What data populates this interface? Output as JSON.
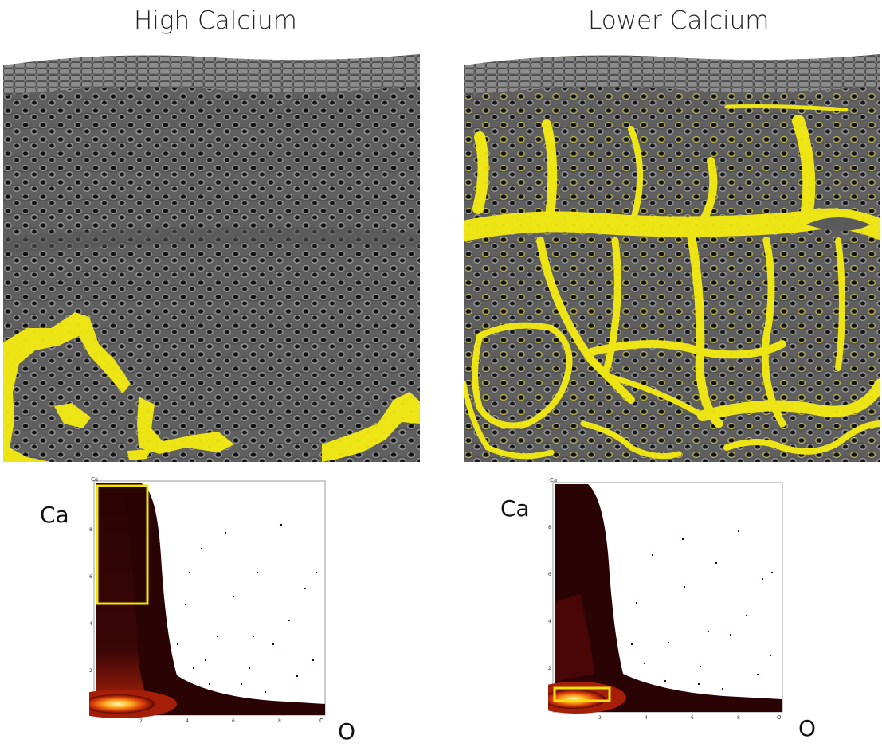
{
  "panels": [
    {
      "title": "High Calcium",
      "ylabel": "Ca",
      "xlabel": "O",
      "mini_y": "Ca",
      "mini_x": "O",
      "y_ticks": [
        "2",
        "4",
        "6",
        "8"
      ],
      "x_ticks": [
        "2",
        "4",
        "6",
        "8"
      ],
      "selection": "high-Ca region (Ca ≈ 5–10, O ≈ 0–2.2)"
    },
    {
      "title": "Lower Calcium",
      "ylabel": "Ca",
      "xlabel": "O",
      "mini_y": "Ca",
      "mini_x": "O",
      "y_ticks": [
        "2",
        "4",
        "6",
        "8"
      ],
      "x_ticks": [
        "2",
        "4",
        "6",
        "8"
      ],
      "selection": "low-Ca region (Ca ≈ 0.6–1.2, O ≈ 0–2.4)"
    }
  ],
  "colors": {
    "overlay": "#f5ec12",
    "selection_box": "#f2e20a",
    "tissue": "#6e6e6e",
    "density_high": "#fff7c0",
    "density_mid": "#d83a0a",
    "density_low": "#3a0404"
  }
}
